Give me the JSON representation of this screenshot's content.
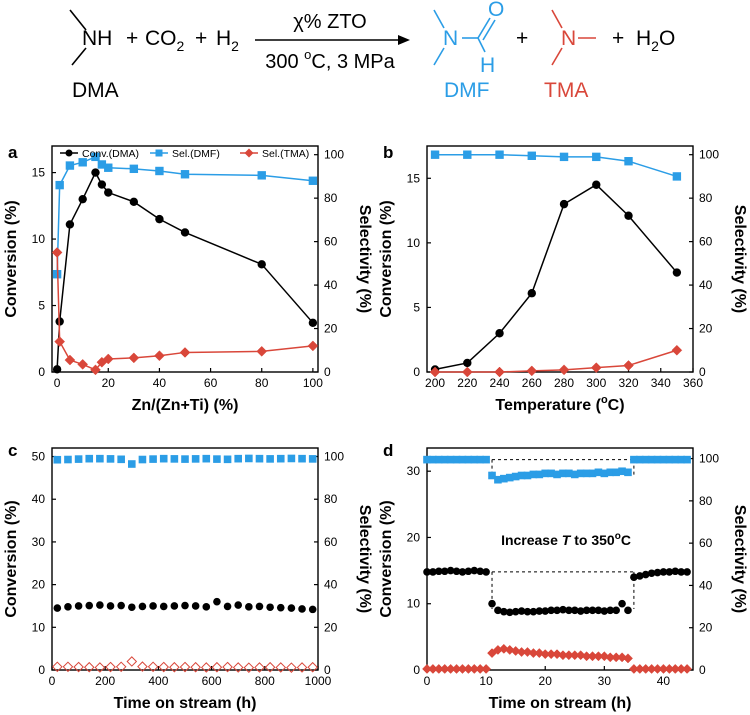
{
  "scheme": {
    "reactant_group": "NH",
    "reactant_name": "DMA",
    "plus1": "+",
    "co2": "CO",
    "co2_sub": "2",
    "plus2": "+",
    "h2": "H",
    "h2_sub": "2",
    "catalyst": "χ% ZTO",
    "conditions": "300 ",
    "conditions_sup": "o",
    "conditions_tail": "C, 3 MPa",
    "dmf_n": "N",
    "dmf_o": "O",
    "dmf_h": "H",
    "dmf_name": "DMF",
    "plus3": "+",
    "tma_n": "N",
    "tma_name": "TMA",
    "plus4": "+",
    "water": "H",
    "water_sub": "2",
    "water_tail": "O",
    "colors": {
      "dmf": "#2b9de6",
      "tma": "#d9473a"
    }
  },
  "chart_data": [
    {
      "panel": "a",
      "type": "line",
      "xlabel": "Zn/(Zn+Ti) (%)",
      "ylabel": "Conversion (%)",
      "y2label": "Selectivity (%)",
      "xlim": [
        -2,
        102
      ],
      "ylim": [
        0,
        17
      ],
      "y2lim": [
        0,
        104
      ],
      "xticks": [
        0,
        20,
        40,
        60,
        80,
        100
      ],
      "yticks": [
        0,
        5,
        10,
        15
      ],
      "y2ticks": [
        0,
        20,
        40,
        60,
        80,
        100
      ],
      "legend": {
        "position": "top",
        "entries": [
          "Conv.(DMA)",
          "Sel.(DMF)",
          "Sel.(TMA)"
        ]
      },
      "series": [
        {
          "name": "Conv.(DMA)",
          "axis": "left",
          "marker": "circle",
          "color": "#000000",
          "x": [
            0,
            1,
            5,
            10,
            15,
            17.5,
            20,
            30,
            40,
            50,
            80,
            100
          ],
          "y": [
            0.2,
            3.8,
            11.1,
            13.0,
            15.0,
            14.1,
            13.5,
            12.8,
            11.5,
            10.5,
            8.1,
            3.7
          ]
        },
        {
          "name": "Sel.(DMF)",
          "axis": "right",
          "marker": "square",
          "color": "#2b9de6",
          "x": [
            0,
            1,
            5,
            10,
            15,
            17.5,
            20,
            30,
            40,
            50,
            80,
            100
          ],
          "y": [
            45,
            86,
            95,
            96.5,
            99,
            95.5,
            94,
            93.5,
            92.5,
            91,
            90.5,
            88
          ]
        },
        {
          "name": "Sel.(TMA)",
          "axis": "right",
          "marker": "diamond",
          "color": "#d9473a",
          "x": [
            0,
            1,
            5,
            10,
            15,
            17.5,
            20,
            30,
            40,
            50,
            80,
            100
          ],
          "y": [
            55,
            14,
            5.5,
            3.5,
            1.0,
            4.5,
            6.0,
            6.5,
            7.5,
            9.0,
            9.5,
            12
          ]
        }
      ]
    },
    {
      "panel": "b",
      "type": "line",
      "xlabel": "Temperature (",
      "xlabel_sup": "o",
      "xlabel_tail": "C)",
      "ylabel": "Conversion (%)",
      "y2label": "Selectivity (%)",
      "xlim": [
        195,
        360
      ],
      "ylim": [
        0,
        17.5
      ],
      "y2lim": [
        0,
        104
      ],
      "xticks": [
        200,
        220,
        240,
        260,
        280,
        300,
        320,
        340,
        360
      ],
      "yticks": [
        0,
        5,
        10,
        15
      ],
      "y2ticks": [
        0,
        20,
        40,
        60,
        80,
        100
      ],
      "series": [
        {
          "name": "Conv.(DMA)",
          "axis": "left",
          "marker": "circle",
          "color": "#000000",
          "x": [
            200,
            220,
            240,
            260,
            280,
            300,
            320,
            350
          ],
          "y": [
            0.2,
            0.7,
            3.0,
            6.1,
            13.0,
            14.5,
            12.1,
            7.7
          ]
        },
        {
          "name": "Sel.(DMF)",
          "axis": "right",
          "marker": "square",
          "color": "#2b9de6",
          "x": [
            200,
            220,
            240,
            260,
            280,
            300,
            320,
            350
          ],
          "y": [
            100,
            100,
            100,
            99.5,
            99,
            99,
            97,
            90
          ]
        },
        {
          "name": "Sel.(TMA)",
          "axis": "right",
          "marker": "diamond",
          "color": "#d9473a",
          "x": [
            200,
            220,
            240,
            260,
            280,
            300,
            320,
            350
          ],
          "y": [
            0,
            0,
            0,
            0.5,
            1,
            2,
            3,
            10
          ]
        }
      ]
    },
    {
      "panel": "c",
      "type": "scatter",
      "xlabel": "Time on stream (h)",
      "ylabel": "Conversion (%)",
      "y2label": "Selectivity (%)",
      "xlim": [
        0,
        1000
      ],
      "ylim": [
        0,
        52
      ],
      "y2lim": [
        0,
        104
      ],
      "xticks": [
        0,
        200,
        400,
        600,
        800,
        1000
      ],
      "yticks": [
        0,
        10,
        20,
        30,
        40,
        50
      ],
      "y2ticks": [
        0,
        20,
        40,
        60,
        80,
        100
      ],
      "series": [
        {
          "name": "Conv.(DMA)",
          "axis": "left",
          "marker": "circle",
          "color": "#000000",
          "x": [
            20,
            60,
            100,
            140,
            180,
            220,
            260,
            300,
            340,
            380,
            420,
            460,
            500,
            540,
            580,
            620,
            660,
            700,
            740,
            780,
            820,
            860,
            900,
            940,
            980
          ],
          "y": [
            14.5,
            14.8,
            15.0,
            15.1,
            15.2,
            15.0,
            15.1,
            14.7,
            14.9,
            15.0,
            14.9,
            15.0,
            15.1,
            15.0,
            14.8,
            16.0,
            14.9,
            15.2,
            14.8,
            14.9,
            14.7,
            14.6,
            14.5,
            14.3,
            14.2
          ]
        },
        {
          "name": "Sel.(DMF)",
          "axis": "right",
          "marker": "square",
          "color": "#2b9de6",
          "x": [
            20,
            60,
            100,
            140,
            180,
            220,
            260,
            300,
            340,
            380,
            420,
            460,
            500,
            540,
            580,
            620,
            660,
            700,
            740,
            780,
            820,
            860,
            900,
            940,
            980
          ],
          "y": [
            98.5,
            98.6,
            98.8,
            99,
            99,
            98.9,
            98.7,
            96.5,
            98.6,
            98.8,
            99,
            98.9,
            98.8,
            98.9,
            99,
            98.8,
            98.7,
            99,
            99.1,
            99,
            98.9,
            99,
            99.1,
            99,
            98.9
          ]
        },
        {
          "name": "Sel.(TMA)",
          "axis": "right",
          "marker": "diamond-open",
          "color": "#d9473a",
          "x": [
            20,
            60,
            100,
            140,
            180,
            220,
            260,
            300,
            340,
            380,
            420,
            460,
            500,
            540,
            580,
            620,
            660,
            700,
            740,
            780,
            820,
            860,
            900,
            940,
            980
          ],
          "y": [
            1.5,
            1.5,
            1.4,
            1.3,
            1.2,
            1.4,
            1.5,
            4.0,
            1.6,
            1.5,
            1.4,
            1.3,
            1.4,
            1.3,
            1.2,
            1.3,
            1.4,
            1.2,
            1.1,
            1.2,
            1.3,
            1.2,
            1.1,
            1.2,
            1.3
          ]
        }
      ]
    },
    {
      "panel": "d",
      "type": "scatter",
      "xlabel": "Time on stream (h)",
      "ylabel": "Conversion (%)",
      "y2label": "Selectivity (%)",
      "annotation": "Increase ",
      "annotation_var": "T",
      "annotation_mid": " to 350",
      "annotation_sup": "o",
      "annotation_tail": "C",
      "xlim": [
        0,
        45
      ],
      "ylim": [
        0,
        33.5
      ],
      "y2lim": [
        0,
        105
      ],
      "xticks": [
        0,
        10,
        20,
        30,
        40
      ],
      "yticks": [
        0,
        10,
        20,
        30
      ],
      "y2ticks": [
        0,
        20,
        40,
        60,
        80,
        100
      ],
      "series": [
        {
          "name": "Conv.(DMA)",
          "axis": "left",
          "marker": "circle",
          "color": "#000000",
          "x": [
            0,
            1,
            2,
            3,
            4,
            5,
            6,
            7,
            8,
            9,
            10,
            11,
            12,
            13,
            14,
            15,
            16,
            17,
            18,
            19,
            20,
            21,
            22,
            23,
            24,
            25,
            26,
            27,
            28,
            29,
            30,
            31,
            32,
            33,
            34,
            35,
            36,
            37,
            38,
            39,
            40,
            41,
            42,
            43,
            44
          ],
          "y": [
            14.8,
            14.8,
            14.9,
            14.9,
            15.0,
            14.9,
            14.8,
            14.9,
            15.0,
            14.9,
            14.8,
            10.0,
            9.0,
            8.8,
            8.7,
            8.8,
            8.9,
            8.8,
            8.8,
            8.9,
            8.9,
            9.0,
            9.0,
            9.1,
            9.0,
            9.0,
            8.9,
            9.0,
            9.0,
            9.0,
            8.9,
            9.0,
            9.0,
            10.0,
            9.0,
            14.0,
            14.2,
            14.4,
            14.6,
            14.7,
            14.8,
            14.8,
            14.9,
            14.8,
            14.8
          ]
        },
        {
          "name": "Sel.(DMF)",
          "axis": "right",
          "marker": "square",
          "color": "#2b9de6",
          "x": [
            0,
            1,
            2,
            3,
            4,
            5,
            6,
            7,
            8,
            9,
            10,
            11,
            12,
            13,
            14,
            15,
            16,
            17,
            18,
            19,
            20,
            21,
            22,
            23,
            24,
            25,
            26,
            27,
            28,
            29,
            30,
            31,
            32,
            33,
            34,
            35,
            36,
            37,
            38,
            39,
            40,
            41,
            42,
            43,
            44
          ],
          "y": [
            99.5,
            99.5,
            99.5,
            99.5,
            99.5,
            99.5,
            99.5,
            99.5,
            99.5,
            99.5,
            99.5,
            92,
            90,
            90.5,
            91,
            91.5,
            92,
            92,
            92.5,
            92.5,
            93,
            93,
            92.5,
            93,
            93,
            92.5,
            93,
            93,
            93,
            93.5,
            93,
            93.5,
            93.5,
            94,
            93.5,
            99.5,
            99.5,
            99.5,
            99.5,
            99.5,
            99.5,
            99.5,
            99.5,
            99.5,
            99.5
          ]
        },
        {
          "name": "Sel.(TMA)",
          "axis": "right",
          "marker": "diamond",
          "color": "#d9473a",
          "x": [
            0,
            1,
            2,
            3,
            4,
            5,
            6,
            7,
            8,
            9,
            10,
            11,
            12,
            13,
            14,
            15,
            16,
            17,
            18,
            19,
            20,
            21,
            22,
            23,
            24,
            25,
            26,
            27,
            28,
            29,
            30,
            31,
            32,
            33,
            34,
            35,
            36,
            37,
            38,
            39,
            40,
            41,
            42,
            43,
            44
          ],
          "y": [
            0.5,
            0.5,
            0.5,
            0.5,
            0.5,
            0.5,
            0.5,
            0.5,
            0.5,
            0.5,
            0.5,
            8,
            9.5,
            10,
            9.5,
            9,
            8.5,
            8.5,
            8,
            8,
            7.5,
            7.5,
            7.5,
            7,
            7,
            7,
            7,
            6.5,
            6.5,
            6.5,
            6.5,
            6,
            6,
            6,
            5.5,
            0.5,
            0.5,
            0.5,
            0.5,
            0.5,
            0.5,
            0.5,
            0.5,
            0.5,
            0.5
          ]
        }
      ],
      "reference_lines": [
        {
          "axis": "right",
          "y": 99.5,
          "x_from": 11,
          "x_to": 35
        },
        {
          "axis": "left",
          "y": 14.8,
          "x_from": 11,
          "x_to": 35
        }
      ]
    }
  ]
}
